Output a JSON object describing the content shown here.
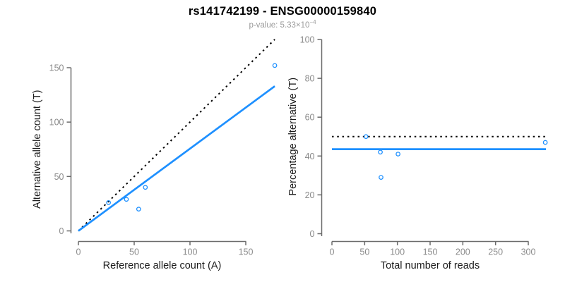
{
  "header": {
    "title": "rs141742199 - ENSG00000159840",
    "subtitle_main": "p-value: 5.33×10",
    "subtitle_exponent": "−4"
  },
  "colors": {
    "accent_blue": "#1E90FF",
    "dotted_line_black": "#000000",
    "axis_gray": "#6b6b6b",
    "tick_label_gray": "#8a8a8a",
    "axis_title_black": "#1a1a1a"
  },
  "chart_data": [
    {
      "type": "scatter",
      "panel": "allele-counts",
      "xlabel": "Reference allele count (A)",
      "ylabel": "Alternative allele count (T)",
      "xticks": [
        0,
        50,
        100,
        150
      ],
      "yticks": [
        0,
        50,
        100,
        150
      ],
      "xlim": [
        0,
        176
      ],
      "ylim": [
        0,
        176
      ],
      "grid": false,
      "legend": false,
      "points": [
        [
          27,
          26
        ],
        [
          43,
          29
        ],
        [
          54,
          20
        ],
        [
          60,
          40
        ],
        [
          176,
          152
        ]
      ],
      "lines": [
        {
          "name": "identity-line",
          "style": "dotted",
          "color_key": "dotted_line_black",
          "x1": 0,
          "y1": 0,
          "x2": 176,
          "y2": 176
        },
        {
          "name": "fitted-line",
          "style": "solid",
          "color_key": "accent_blue",
          "x1": 0,
          "y1": 0,
          "x2": 176,
          "y2": 133
        }
      ]
    },
    {
      "type": "scatter",
      "panel": "percentage-vs-reads",
      "xlabel": "Total number of reads",
      "ylabel": "Percentage alternative (T)",
      "xticks": [
        0,
        50,
        100,
        150,
        200,
        250,
        300
      ],
      "yticks": [
        0,
        20,
        40,
        60,
        80,
        100
      ],
      "xlim": [
        0,
        327
      ],
      "ylim": [
        0,
        100
      ],
      "grid": false,
      "legend": false,
      "points": [
        [
          52,
          50
        ],
        [
          74,
          42
        ],
        [
          75,
          29
        ],
        [
          101,
          41
        ],
        [
          326,
          47
        ]
      ],
      "lines": [
        {
          "name": "expected-50pct-line",
          "style": "dotted",
          "color_key": "dotted_line_black",
          "x1": 0,
          "y1": 50,
          "x2": 327,
          "y2": 50
        },
        {
          "name": "observed-ratio-line",
          "style": "solid",
          "color_key": "accent_blue",
          "x1": 0,
          "y1": 43.5,
          "x2": 327,
          "y2": 43.5
        }
      ]
    }
  ]
}
